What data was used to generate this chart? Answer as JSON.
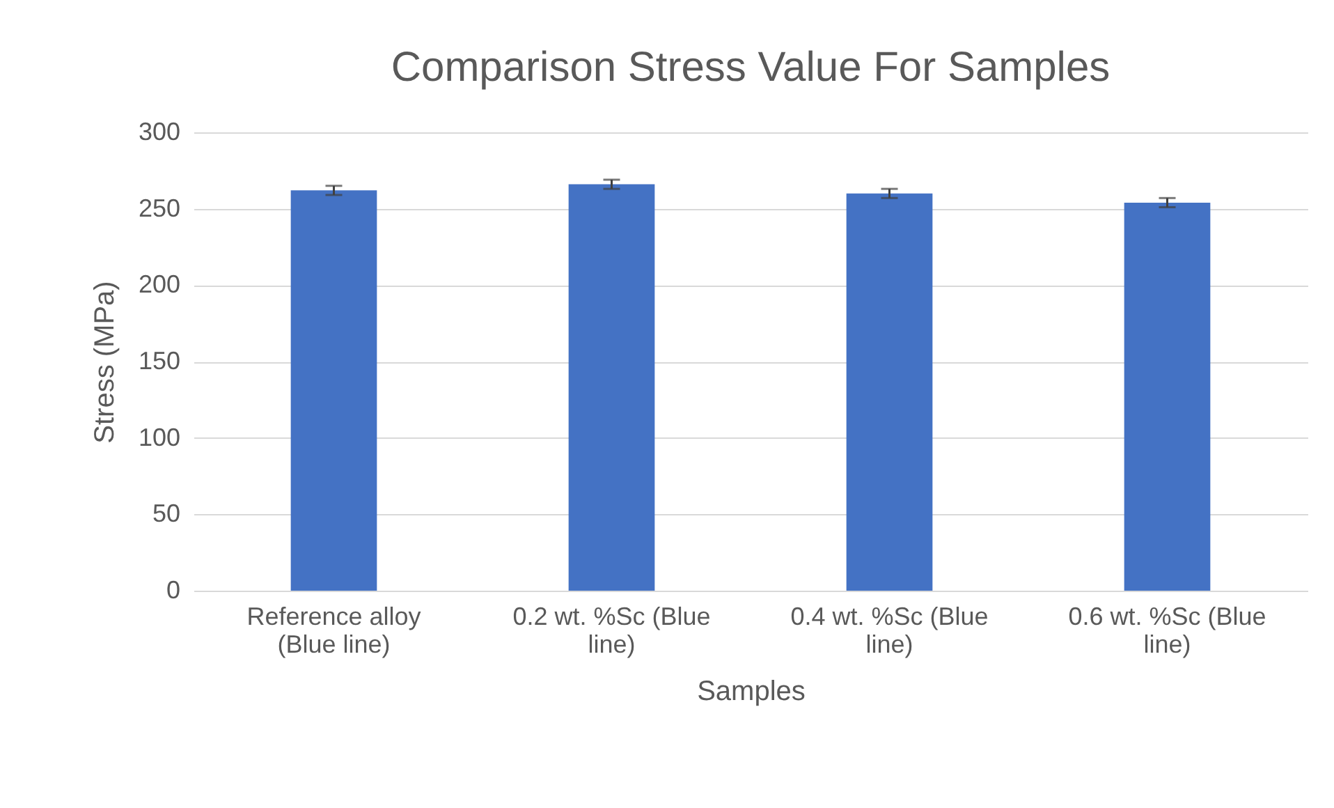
{
  "chart_data": {
    "type": "bar",
    "title": "Comparison Stress Value For Samples",
    "xlabel": "Samples",
    "ylabel": "Stress  (MPa)",
    "categories": [
      "Reference alloy (Blue line)",
      "0.2 wt. %Sc (Blue line)",
      "0.4 wt. %Sc (Blue line)",
      "0.6 wt. %Sc (Blue line)"
    ],
    "values": [
      262,
      266,
      260,
      254
    ],
    "errors": [
      3,
      3,
      3,
      3
    ],
    "color": "#4472c4",
    "ylim": [
      0,
      300
    ],
    "yticks": [
      0,
      50,
      100,
      150,
      200,
      250,
      300
    ],
    "grid": "y"
  }
}
